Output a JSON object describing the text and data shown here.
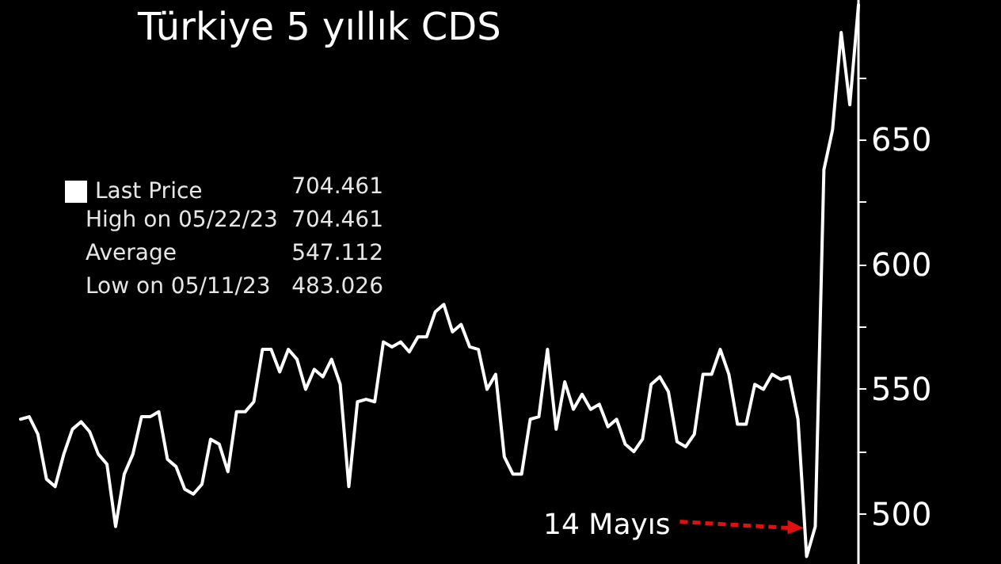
{
  "chart_data": {
    "type": "line",
    "title": "Türkiye 5 yıllık CDS",
    "categories": [
      null,
      null,
      null,
      null,
      null,
      null,
      null,
      null,
      null,
      null,
      null,
      null,
      null,
      null,
      null,
      null,
      null,
      null,
      null,
      null,
      null,
      null,
      null,
      null,
      null,
      null,
      null,
      null,
      null,
      null,
      null,
      null,
      null,
      null,
      null,
      null,
      null,
      null,
      null,
      null,
      null,
      null,
      null,
      null,
      null,
      null,
      null,
      null,
      null,
      null,
      null,
      null,
      null,
      null,
      null,
      null,
      null,
      null,
      null,
      null,
      null,
      null,
      null,
      null,
      null,
      null,
      null,
      null,
      null,
      null,
      null,
      null,
      null,
      null,
      null,
      null,
      null,
      null,
      null,
      null,
      null,
      null,
      null,
      null,
      null,
      null,
      null,
      null,
      null,
      null,
      null,
      null,
      null,
      null,
      null,
      null,
      null,
      null
    ],
    "series": [
      {
        "name": "Last Price",
        "color": "#ffffff",
        "values": [
          538,
          539,
          532,
          514,
          511,
          524,
          534,
          537,
          533,
          524,
          520,
          495,
          516,
          524,
          539,
          539,
          541,
          522,
          519,
          510,
          508,
          512,
          530,
          528,
          517,
          541,
          541,
          545,
          566,
          566,
          557,
          566,
          562,
          550,
          558,
          555,
          562,
          552,
          511,
          545,
          546,
          545,
          569,
          567,
          569,
          565,
          571,
          571,
          581,
          584,
          573,
          576,
          567,
          566,
          550,
          556,
          523,
          516,
          516,
          538,
          539,
          566,
          534,
          553,
          542,
          548,
          542,
          544,
          535,
          538,
          528,
          525,
          530,
          552,
          555,
          549,
          529,
          527,
          532,
          556,
          556,
          566,
          556,
          536,
          536,
          552,
          550,
          556,
          554,
          555,
          538,
          483,
          495,
          638,
          654,
          693,
          664,
          704
        ]
      }
    ],
    "ylim": [
      480,
      706
    ],
    "yticks": [
      500,
      {
        "value": 525,
        "label": null
      },
      550,
      {
        "value": 575,
        "label": null
      },
      600,
      {
        "value": 625,
        "label": null
      },
      650,
      {
        "value": 675,
        "label": null
      }
    ],
    "legend": "top left",
    "grid": false,
    "line_style": "solid",
    "annotations": [
      "704.461",
      "High on 05/22/23",
      "704.461",
      "Average",
      "547.112",
      "Low on 05/11/23",
      "483.026",
      "14 Mayıs"
    ]
  }
}
